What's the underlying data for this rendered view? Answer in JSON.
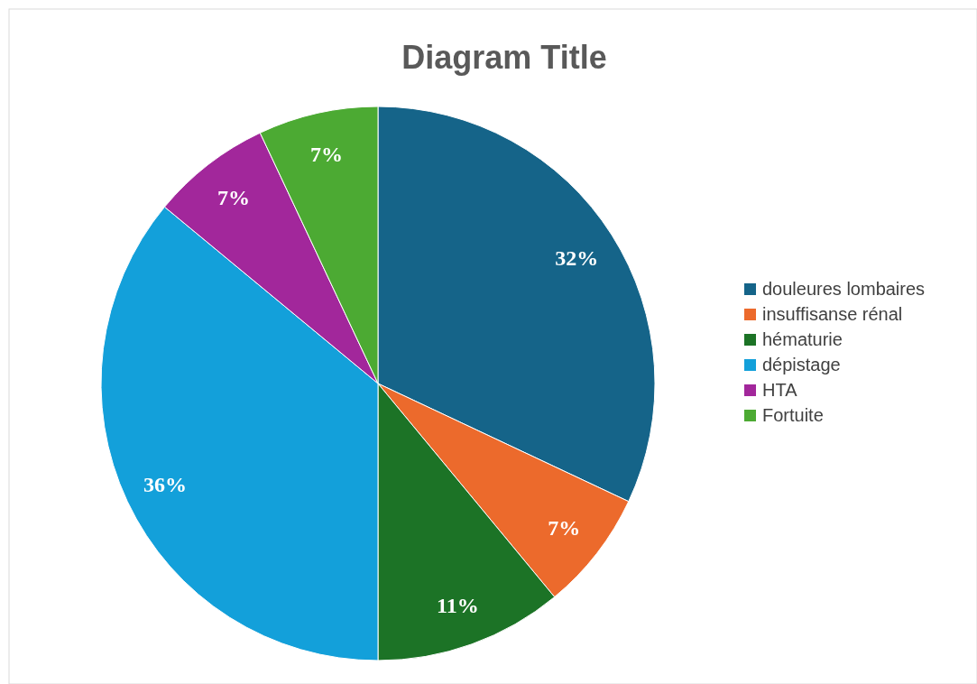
{
  "chart_data": {
    "type": "pie",
    "title": "Diagram Title",
    "categories": [
      "douleures lombaires",
      "insuffisanse rénal",
      "hématurie",
      "dépistage",
      "HTA",
      "Fortuite"
    ],
    "values": [
      32,
      7,
      11,
      36,
      7,
      7
    ],
    "value_labels": [
      "32%",
      "7%",
      "11%",
      "36%",
      "7%",
      "7%"
    ],
    "colors": [
      "#156489",
      "#ec6a2c",
      "#1c7326",
      "#13a0da",
      "#a2279b",
      "#4caa33"
    ],
    "legend": "right"
  }
}
